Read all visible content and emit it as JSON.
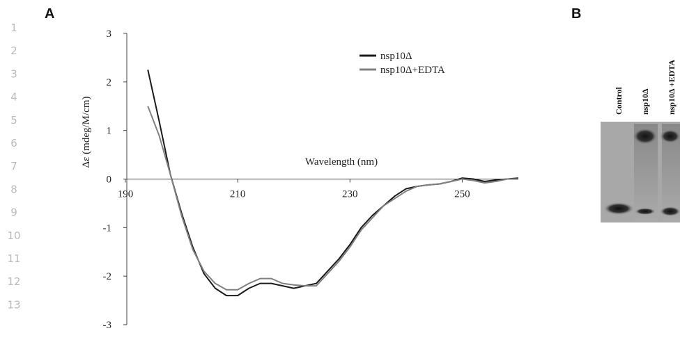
{
  "line_numbers": [
    1,
    2,
    3,
    4,
    5,
    6,
    7,
    8,
    9,
    10,
    11,
    12,
    13
  ],
  "panels": {
    "a": "A",
    "b": "B"
  },
  "chart_data": {
    "type": "line",
    "y_label": "Δε (mdeg/M/cm)",
    "x_label": "Wavelength (nm)",
    "x": [
      194,
      196,
      198,
      200,
      202,
      204,
      206,
      208,
      210,
      212,
      214,
      216,
      218,
      220,
      222,
      224,
      226,
      228,
      230,
      232,
      234,
      236,
      238,
      240,
      242,
      244,
      246,
      248,
      250,
      252,
      254,
      256,
      258,
      260
    ],
    "series": [
      {
        "name": "nsp10Δ",
        "color": "#1a1a1a",
        "values": [
          2.25,
          1.2,
          0.1,
          -0.7,
          -1.4,
          -1.95,
          -2.25,
          -2.4,
          -2.4,
          -2.25,
          -2.15,
          -2.15,
          -2.2,
          -2.25,
          -2.2,
          -2.15,
          -1.9,
          -1.65,
          -1.35,
          -1.0,
          -0.75,
          -0.55,
          -0.35,
          -0.2,
          -0.15,
          -0.12,
          -0.1,
          -0.05,
          0.02,
          0.0,
          -0.05,
          -0.02,
          0.0,
          0.02
        ]
      },
      {
        "name": "nsp10Δ+EDTA",
        "color": "#808080",
        "values": [
          1.5,
          0.9,
          0.1,
          -0.75,
          -1.45,
          -1.9,
          -2.15,
          -2.28,
          -2.28,
          -2.15,
          -2.05,
          -2.05,
          -2.15,
          -2.18,
          -2.2,
          -2.2,
          -1.95,
          -1.7,
          -1.4,
          -1.05,
          -0.8,
          -0.55,
          -0.4,
          -0.25,
          -0.15,
          -0.12,
          -0.1,
          -0.05,
          0.0,
          -0.03,
          -0.08,
          -0.05,
          0.0,
          0.0
        ]
      }
    ],
    "xlim": [
      190,
      260
    ],
    "xticks": [
      190,
      210,
      230,
      250
    ],
    "ylim": [
      -3,
      3
    ],
    "yticks": [
      -3,
      -2,
      -1,
      0,
      1,
      2,
      3
    ]
  },
  "gel": {
    "lanes": [
      "Control",
      "nsp10Δ",
      "nsp10Δ +EDTA"
    ]
  }
}
